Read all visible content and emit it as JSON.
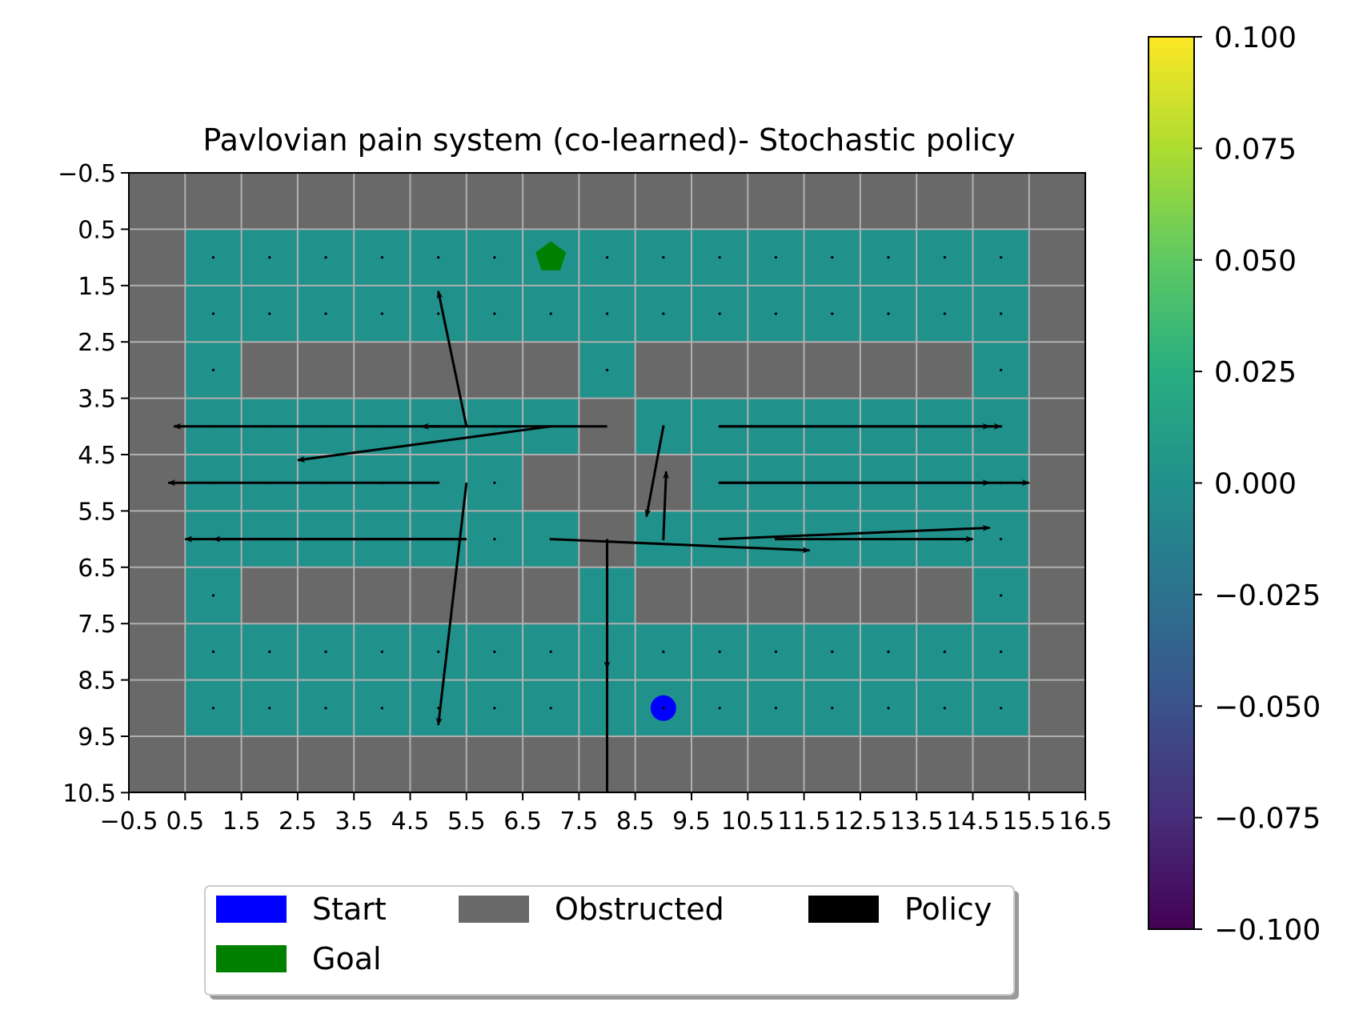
{
  "chart_data": {
    "type": "heatmap",
    "title": "Pavlovian pain system (co-learned)- Stochastic policy",
    "xlim": [
      -0.5,
      16.5
    ],
    "ylim": [
      10.5,
      -0.5
    ],
    "y_inverted": true,
    "grid": true,
    "x_ticks": [
      -0.5,
      0.5,
      1.5,
      2.5,
      3.5,
      4.5,
      5.5,
      6.5,
      7.5,
      8.5,
      9.5,
      10.5,
      11.5,
      12.5,
      13.5,
      14.5,
      15.5,
      16.5
    ],
    "x_tick_labels": [
      "−0.5",
      "0.5",
      "1.5",
      "2.5",
      "3.5",
      "4.5",
      "5.5",
      "6.5",
      "7.5",
      "8.5",
      "9.5",
      "10.5",
      "11.5",
      "12.5",
      "13.5",
      "14.5",
      "15.5",
      "16.5"
    ],
    "y_ticks": [
      -0.5,
      0.5,
      1.5,
      2.5,
      3.5,
      4.5,
      5.5,
      6.5,
      7.5,
      8.5,
      9.5,
      10.5
    ],
    "y_tick_labels": [
      "−0.5",
      "0.5",
      "1.5",
      "2.5",
      "3.5",
      "4.5",
      "5.5",
      "6.5",
      "7.5",
      "8.5",
      "9.5",
      "10.5"
    ],
    "grid_rows": [
      "00000000000000000",
      "01111111111111110",
      "01111111111111110",
      "01000000100000010",
      "01111111011111110",
      "01111110001111110",
      "01111111011111110",
      "01000000100000010",
      "01111111111111110",
      "01111111111111110",
      "00000000000000000"
    ],
    "cell_value_all_open": 0.0,
    "start": {
      "x": 9,
      "y": 9
    },
    "goal": {
      "x": 7,
      "y": 1
    },
    "policy_arrows": [
      {
        "x0": 5.5,
        "y0": 4,
        "x1": 5.0,
        "y1": 1.6
      },
      {
        "x0": 5.5,
        "y0": 4,
        "x1": 4.7,
        "y1": 4
      },
      {
        "x0": 8,
        "y0": 4,
        "x1": 4.7,
        "y1": 4
      },
      {
        "x0": 5,
        "y0": 4,
        "x1": 0.3,
        "y1": 4
      },
      {
        "x0": 7,
        "y0": 4,
        "x1": 2.5,
        "y1": 4.6
      },
      {
        "x0": 5,
        "y0": 5,
        "x1": 0.2,
        "y1": 5
      },
      {
        "x0": 5.5,
        "y0": 5,
        "x1": 5.0,
        "y1": 9.3
      },
      {
        "x0": 5.5,
        "y0": 6,
        "x1": 0.5,
        "y1": 6
      },
      {
        "x0": 5.5,
        "y0": 6,
        "x1": 1.0,
        "y1": 6
      },
      {
        "x0": 9,
        "y0": 4,
        "x1": 8.7,
        "y1": 5.6
      },
      {
        "x0": 9,
        "y0": 6,
        "x1": 9.05,
        "y1": 4.8
      },
      {
        "x0": 7,
        "y0": 6,
        "x1": 11.6,
        "y1": 6.2
      },
      {
        "x0": 8,
        "y0": 6,
        "x1": 8,
        "y1": 8.3
      },
      {
        "x0": 8,
        "y0": 6,
        "x1": 8,
        "y1": 10.5,
        "no_head": true
      },
      {
        "x0": 10,
        "y0": 4,
        "x1": 14.8,
        "y1": 4
      },
      {
        "x0": 10,
        "y0": 4,
        "x1": 15,
        "y1": 4
      },
      {
        "x0": 10,
        "y0": 5,
        "x1": 14.8,
        "y1": 5
      },
      {
        "x0": 10,
        "y0": 5,
        "x1": 15.5,
        "y1": 5
      },
      {
        "x0": 10,
        "y0": 6,
        "x1": 14.8,
        "y1": 5.8
      },
      {
        "x0": 11,
        "y0": 6,
        "x1": 14.5,
        "y1": 6
      }
    ],
    "colorbar": {
      "min": -0.1,
      "max": 0.1,
      "tick_values": [
        0.1,
        0.075,
        0.05,
        0.025,
        0.0,
        -0.025,
        -0.05,
        -0.075,
        -0.1
      ],
      "tick_labels": [
        "0.100",
        "0.075",
        "0.050",
        "0.025",
        "0.000",
        "−0.025",
        "−0.050",
        "−0.075",
        "−0.100"
      ],
      "colormap": "viridis"
    },
    "legend": {
      "placement": "bottom-center",
      "entries": [
        {
          "label": "Start",
          "color": "#0000ff"
        },
        {
          "label": "Obstructed",
          "color": "#696969"
        },
        {
          "label": "Policy",
          "color": "#000000"
        },
        {
          "label": "Goal",
          "color": "#008000"
        }
      ]
    },
    "colors": {
      "open_cell": "#21918c",
      "obstructed": "#696969",
      "gridline": "#b0b0b0",
      "start": "#0000ff",
      "goal": "#008000",
      "policy": "#000000"
    }
  }
}
